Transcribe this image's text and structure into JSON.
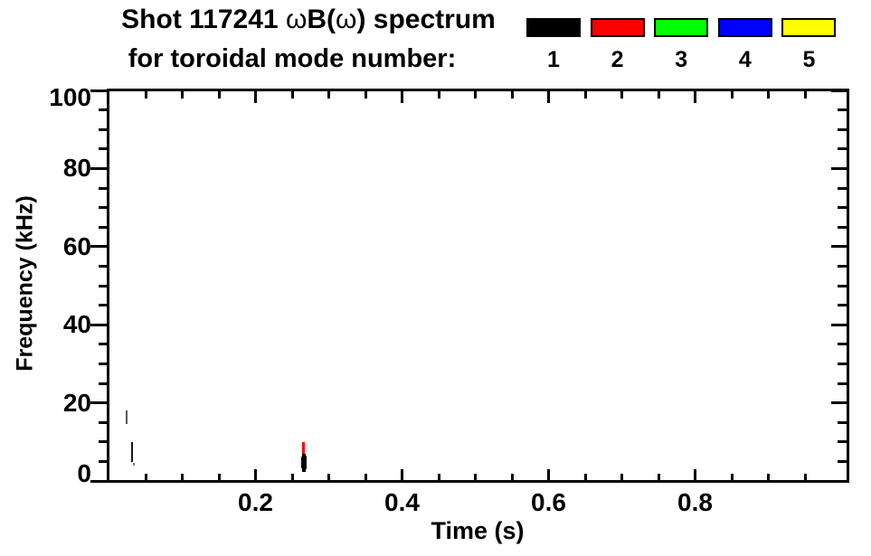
{
  "chart_data": {
    "type": "scatter",
    "title": "Shot 117241 ωB(ω) spectrum",
    "title_parts": {
      "shot": "Shot 117241 ",
      "omega1": "ω",
      "mid": "B(",
      "omega2": "ω",
      "rest": ") spectrum"
    },
    "subtitle": "for toroidal mode number:",
    "xlabel": "Time (s)",
    "ylabel": "Frequency (kHz)",
    "xlim": [
      0,
      1.0074
    ],
    "ylim": [
      0,
      100
    ],
    "grid": false,
    "background_color": "#ffffff",
    "axis_color": "#000000",
    "x_major_ticks": [
      0.2,
      0.4,
      0.6,
      0.8
    ],
    "x_tick_labels": [
      "0.2",
      "0.4",
      "0.6",
      "0.8"
    ],
    "x_minor_ticks": [
      0.05,
      0.1,
      0.15,
      0.25,
      0.3,
      0.35,
      0.45,
      0.5,
      0.55,
      0.65,
      0.7,
      0.75,
      0.85,
      0.9,
      0.95
    ],
    "y_major_ticks": [
      0,
      20,
      40,
      60,
      80,
      100
    ],
    "y_tick_labels": [
      "0",
      "20",
      "40",
      "60",
      "80",
      "100"
    ],
    "y_minor_ticks": [
      5,
      10,
      15,
      25,
      30,
      35,
      45,
      50,
      55,
      65,
      70,
      75,
      85,
      90,
      95
    ],
    "legend": {
      "position": "top-right",
      "entries": [
        {
          "label": "1",
          "color": "#000000"
        },
        {
          "label": "2",
          "color": "#ff0000"
        },
        {
          "label": "3",
          "color": "#00ff00"
        },
        {
          "label": "4",
          "color": "#0000ff"
        },
        {
          "label": "5",
          "color": "#ffff00"
        }
      ]
    },
    "series": [
      {
        "name": "toroidal mode n=1",
        "color": "#000000",
        "marks": [
          {
            "t": 0.0235,
            "f0": 14.6,
            "f1": 18.0,
            "w": 2,
            "alpha": 0.65
          },
          {
            "t": 0.031,
            "f0": 4.9,
            "f1": 9.9,
            "w": 2,
            "alpha": 0.9
          },
          {
            "t": 0.0335,
            "f0": 4.0,
            "f1": 4.6,
            "w": 2,
            "alpha": 0.5
          },
          {
            "t": 0.266,
            "f0": 2.2,
            "f1": 7.0,
            "w": 4,
            "alpha": 1
          },
          {
            "t": 0.2635,
            "f0": 3.2,
            "f1": 6.2,
            "w": 2,
            "alpha": 1
          },
          {
            "t": 0.2687,
            "f0": 3.0,
            "f1": 6.5,
            "w": 2,
            "alpha": 1
          }
        ]
      },
      {
        "name": "toroidal mode n=2",
        "color": "#ff0000",
        "marks": [
          {
            "t": 0.2652,
            "f0": 7.0,
            "f1": 10.0,
            "w": 3,
            "alpha": 1
          }
        ]
      },
      {
        "name": "toroidal mode n=3",
        "color": "#00ff00",
        "marks": []
      },
      {
        "name": "toroidal mode n=4",
        "color": "#0000ff",
        "marks": []
      },
      {
        "name": "toroidal mode n=5",
        "color": "#ffff00",
        "marks": []
      }
    ]
  }
}
